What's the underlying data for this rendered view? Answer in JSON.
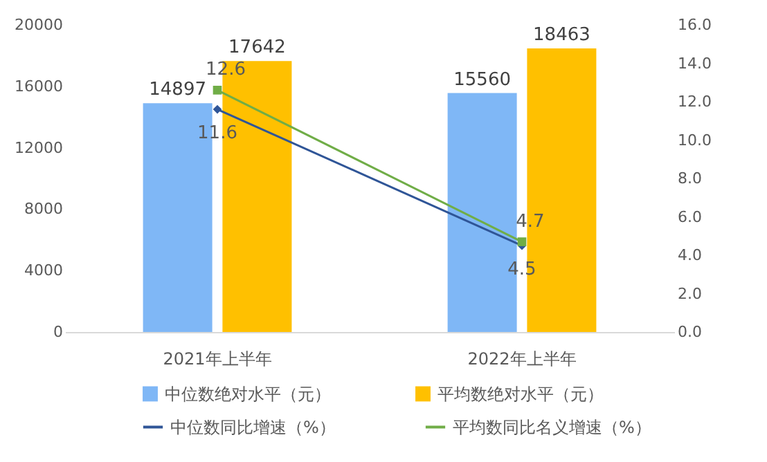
{
  "chart_data": {
    "type": "bar",
    "categories": [
      "2021年上半年",
      "2022年上半年"
    ],
    "series": [
      {
        "name": "中位数绝对水平（元）",
        "color": "#7fb7f6",
        "values": [
          14897,
          15560
        ]
      },
      {
        "name": "平均数绝对水平（元）",
        "color": "#ffc000",
        "values": [
          17642,
          18463
        ]
      },
      {
        "name": "中位数同比增速（%）",
        "type": "line",
        "axis": "y2",
        "marker": "diamond",
        "color": "#2f5597",
        "values": [
          11.6,
          4.5
        ]
      },
      {
        "name": "平均数同比名义增速（%）",
        "type": "line",
        "axis": "y2",
        "marker": "square",
        "color": "#70ad47",
        "values": [
          12.6,
          4.7
        ]
      }
    ],
    "ylim": [
      0,
      20000
    ],
    "yticks": [
      0,
      4000,
      8000,
      12000,
      16000,
      20000
    ],
    "y2lim": [
      0,
      16
    ],
    "y2ticks": [
      {
        "value": 0,
        "label": "0.0"
      },
      {
        "value": 2,
        "label": "2.0"
      },
      {
        "value": 4,
        "label": "4.0"
      },
      {
        "value": 6,
        "label": "6.0"
      },
      {
        "value": 8,
        "label": "8.0"
      },
      {
        "value": 10,
        "label": "10.0"
      },
      {
        "value": 12,
        "label": "12.0"
      },
      {
        "value": 14,
        "label": "14.0"
      },
      {
        "value": 16,
        "label": "16.0"
      }
    ],
    "data_labels": true,
    "legend": "bottom"
  }
}
